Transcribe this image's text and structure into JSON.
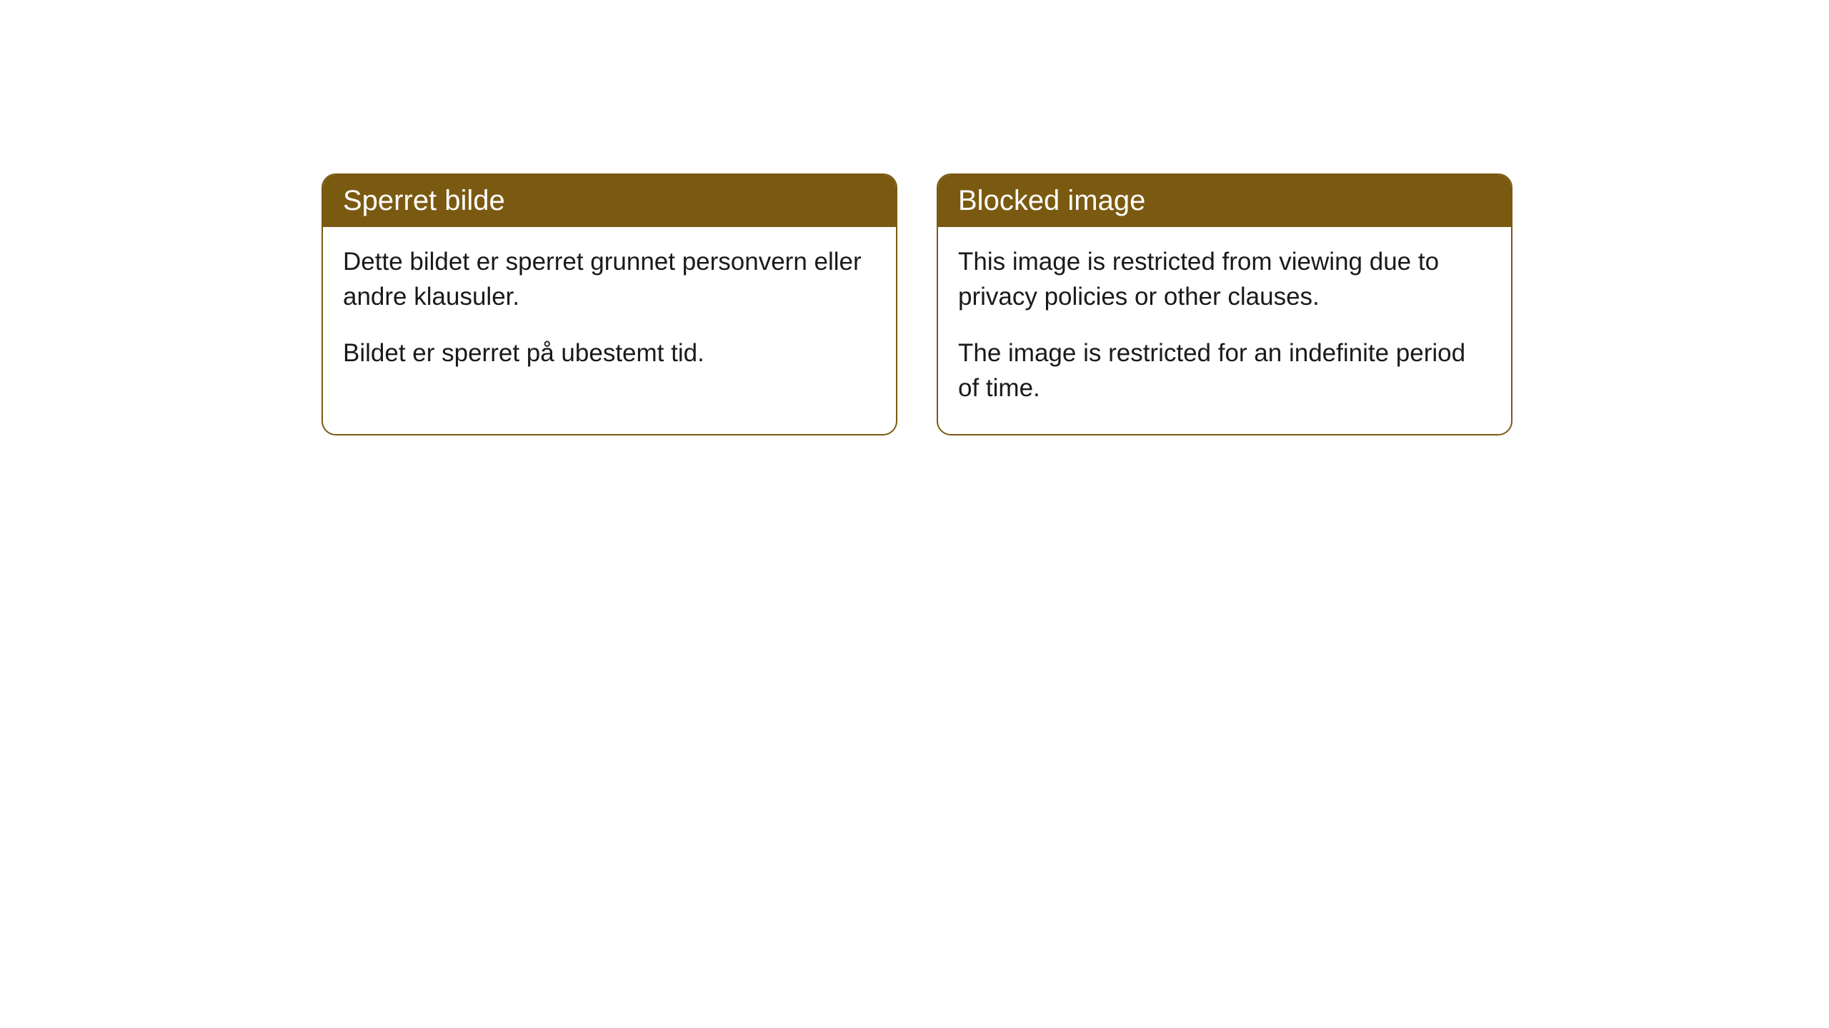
{
  "cards": [
    {
      "title": "Sperret bilde",
      "paragraph1": "Dette bildet er sperret grunnet personvern eller andre klausuler.",
      "paragraph2": "Bildet er sperret på ubestemt tid."
    },
    {
      "title": "Blocked image",
      "paragraph1": "This image is restricted from viewing due to privacy policies or other clauses.",
      "paragraph2": "The image is restricted for an indefinite period of time."
    }
  ],
  "styling": {
    "header_background_color": "#7a5a11",
    "header_text_color": "#ffffff",
    "body_text_color": "#1a1a1a",
    "border_color": "#7a5a11",
    "card_background_color": "#ffffff",
    "page_background_color": "#ffffff",
    "border_radius": 20,
    "header_font_size": 40,
    "body_font_size": 35
  }
}
